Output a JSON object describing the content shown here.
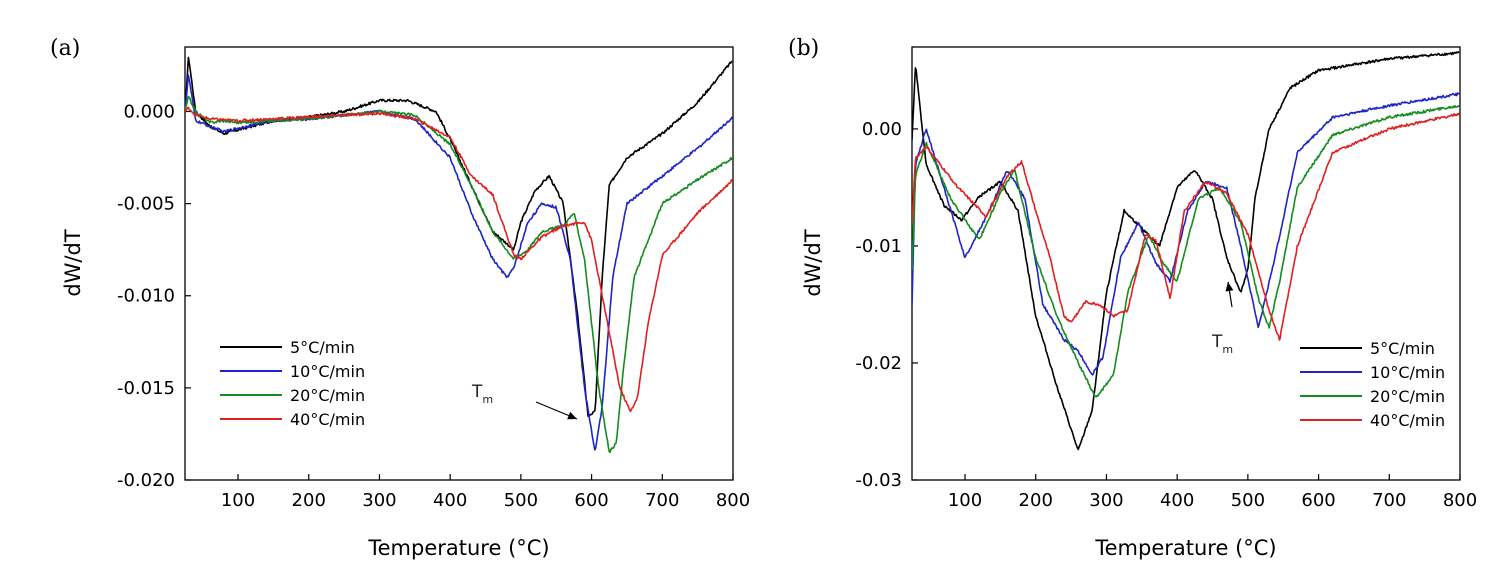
{
  "chart_data": [
    {
      "type": "line",
      "panel_label": "(a)",
      "xlabel": "Temperature (°C)",
      "ylabel": "dW/dT",
      "xlim": [
        25,
        800
      ],
      "ylim": [
        -0.02,
        0.0035
      ],
      "xticks": [
        100,
        200,
        300,
        400,
        500,
        600,
        700,
        800
      ],
      "xtick_labels": [
        "100",
        "200",
        "300",
        "400",
        "500",
        "600",
        "700",
        "800"
      ],
      "yticks": [
        0.0,
        -0.005,
        -0.01,
        -0.015,
        -0.02
      ],
      "ytick_labels": [
        "0.000",
        "-0.005",
        "-0.010",
        "-0.015",
        "-0.020"
      ],
      "legend_position": "bottom-left",
      "annotation": {
        "text": "T",
        "sub": "m"
      },
      "series": [
        {
          "name": "5°C/min",
          "color": "#000000",
          "x": [
            25,
            30,
            40,
            60,
            80,
            100,
            150,
            200,
            250,
            300,
            340,
            380,
            400,
            430,
            460,
            490,
            500,
            520,
            540,
            560,
            580,
            595,
            605,
            615,
            625,
            650,
            700,
            750,
            800
          ],
          "y": [
            0.0,
            0.003,
            0.0,
            -0.0008,
            -0.0012,
            -0.001,
            -0.0005,
            -0.0003,
            0.0,
            0.0006,
            0.0006,
            0.0,
            -0.0015,
            -0.004,
            -0.0065,
            -0.0075,
            -0.006,
            -0.0043,
            -0.0035,
            -0.005,
            -0.011,
            -0.0165,
            -0.0163,
            -0.009,
            -0.004,
            -0.0025,
            -0.0012,
            0.0005,
            0.0028
          ]
        },
        {
          "name": "10°C/min",
          "color": "#1f24c8",
          "x": [
            25,
            30,
            40,
            60,
            80,
            100,
            150,
            200,
            250,
            300,
            350,
            400,
            430,
            460,
            480,
            490,
            510,
            530,
            550,
            570,
            590,
            605,
            615,
            630,
            650,
            700,
            750,
            800
          ],
          "y": [
            0.0,
            0.002,
            -0.0005,
            -0.0008,
            -0.0011,
            -0.0009,
            -0.0005,
            -0.0004,
            -0.0002,
            0.0,
            -0.0004,
            -0.0025,
            -0.0055,
            -0.008,
            -0.009,
            -0.0085,
            -0.006,
            -0.005,
            -0.0052,
            -0.008,
            -0.015,
            -0.0185,
            -0.016,
            -0.009,
            -0.005,
            -0.0035,
            -0.002,
            -0.0003
          ]
        },
        {
          "name": "20°C/min",
          "color": "#148c1e",
          "x": [
            25,
            30,
            40,
            60,
            80,
            100,
            150,
            200,
            250,
            300,
            350,
            400,
            430,
            460,
            490,
            510,
            530,
            560,
            575,
            590,
            610,
            625,
            635,
            645,
            660,
            700,
            750,
            800
          ],
          "y": [
            0.0,
            0.0008,
            0.0,
            -0.0006,
            -0.0005,
            -0.0006,
            -0.0005,
            -0.0004,
            -0.0002,
            0.0,
            -0.0002,
            -0.0018,
            -0.004,
            -0.0065,
            -0.008,
            -0.0075,
            -0.0065,
            -0.0062,
            -0.0055,
            -0.008,
            -0.015,
            -0.0185,
            -0.018,
            -0.014,
            -0.009,
            -0.005,
            -0.0037,
            -0.0025
          ]
        },
        {
          "name": "40°C/min",
          "color": "#e02020",
          "x": [
            25,
            30,
            40,
            60,
            100,
            150,
            200,
            250,
            300,
            350,
            400,
            430,
            460,
            490,
            500,
            530,
            560,
            590,
            600,
            620,
            640,
            655,
            665,
            680,
            700,
            750,
            800
          ],
          "y": [
            0.0,
            0.0002,
            -0.0002,
            -0.0004,
            -0.0005,
            -0.0004,
            -0.0003,
            -0.0002,
            -0.0001,
            -0.0004,
            -0.0014,
            -0.0035,
            -0.0045,
            -0.0078,
            -0.008,
            -0.0068,
            -0.0062,
            -0.006,
            -0.007,
            -0.011,
            -0.015,
            -0.0163,
            -0.0155,
            -0.0115,
            -0.0078,
            -0.0055,
            -0.0037
          ]
        }
      ]
    },
    {
      "type": "line",
      "panel_label": "(b)",
      "xlabel": "Temperature (°C)",
      "ylabel": "dW/dT",
      "xlim": [
        25,
        800
      ],
      "ylim": [
        -0.03,
        0.007
      ],
      "xticks": [
        100,
        200,
        300,
        400,
        500,
        600,
        700,
        800
      ],
      "xtick_labels": [
        "100",
        "200",
        "300",
        "400",
        "500",
        "600",
        "700",
        "800"
      ],
      "yticks": [
        0.0,
        -0.01,
        -0.02,
        -0.03
      ],
      "ytick_labels": [
        "0.00",
        "-0.01",
        "-0.02",
        "-0.03"
      ],
      "legend_position": "bottom-right",
      "annotation": {
        "text": "T",
        "sub": "m"
      },
      "series": [
        {
          "name": "5°C/min",
          "color": "#000000",
          "x": [
            25,
            30,
            45,
            70,
            95,
            120,
            150,
            175,
            200,
            230,
            260,
            280,
            300,
            325,
            350,
            375,
            400,
            425,
            450,
            470,
            490,
            500,
            510,
            530,
            560,
            600,
            700,
            800
          ],
          "y": [
            -0.001,
            0.0055,
            -0.003,
            -0.0065,
            -0.0078,
            -0.0058,
            -0.0045,
            -0.007,
            -0.016,
            -0.022,
            -0.0275,
            -0.024,
            -0.014,
            -0.007,
            -0.0085,
            -0.01,
            -0.005,
            -0.0035,
            -0.006,
            -0.011,
            -0.014,
            -0.012,
            -0.006,
            0.0,
            0.0035,
            0.005,
            0.006,
            0.0065
          ]
        },
        {
          "name": "10°C/min",
          "color": "#1f24c8",
          "x": [
            25,
            30,
            45,
            70,
            100,
            130,
            160,
            185,
            210,
            240,
            260,
            280,
            295,
            320,
            345,
            370,
            390,
            415,
            440,
            470,
            490,
            515,
            540,
            570,
            620,
            700,
            800
          ],
          "y": [
            -0.015,
            -0.003,
            0.0,
            -0.005,
            -0.011,
            -0.0075,
            -0.0035,
            -0.006,
            -0.015,
            -0.018,
            -0.019,
            -0.021,
            -0.0195,
            -0.011,
            -0.008,
            -0.0115,
            -0.013,
            -0.007,
            -0.0045,
            -0.005,
            -0.01,
            -0.017,
            -0.0105,
            -0.002,
            0.001,
            0.002,
            0.003
          ]
        },
        {
          "name": "20°C/min",
          "color": "#148c1e",
          "x": [
            25,
            30,
            45,
            80,
            120,
            150,
            170,
            200,
            230,
            260,
            285,
            310,
            330,
            360,
            380,
            400,
            430,
            460,
            490,
            515,
            530,
            545,
            570,
            620,
            700,
            800
          ],
          "y": [
            -0.012,
            -0.004,
            -0.0012,
            -0.006,
            -0.0095,
            -0.0055,
            -0.0035,
            -0.011,
            -0.016,
            -0.02,
            -0.023,
            -0.021,
            -0.014,
            -0.009,
            -0.0115,
            -0.013,
            -0.006,
            -0.005,
            -0.008,
            -0.0145,
            -0.017,
            -0.013,
            -0.005,
            -0.0005,
            0.001,
            0.002
          ]
        },
        {
          "name": "40°C/min",
          "color": "#e02020",
          "x": [
            25,
            30,
            45,
            90,
            130,
            160,
            180,
            200,
            220,
            240,
            250,
            270,
            290,
            310,
            330,
            355,
            370,
            390,
            410,
            440,
            470,
            500,
            530,
            545,
            570,
            620,
            700,
            800
          ],
          "y": [
            -0.008,
            -0.0025,
            -0.0015,
            -0.005,
            -0.0075,
            -0.004,
            -0.0028,
            -0.007,
            -0.011,
            -0.016,
            -0.0165,
            -0.0148,
            -0.015,
            -0.016,
            -0.0155,
            -0.009,
            -0.0095,
            -0.0145,
            -0.007,
            -0.0045,
            -0.0055,
            -0.009,
            -0.0155,
            -0.018,
            -0.01,
            -0.002,
            0.0,
            0.0013
          ]
        }
      ]
    }
  ]
}
